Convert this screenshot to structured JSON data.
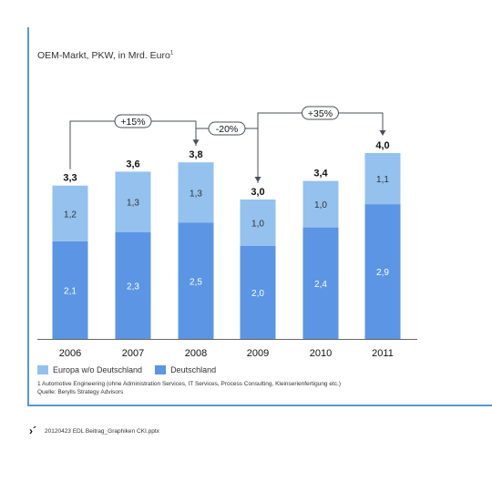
{
  "title_main": "OEM-Markt, PKW, in Mrd. Euro",
  "title_sup": "1",
  "chart_data": {
    "type": "bar",
    "stacked": true,
    "categories": [
      "2006",
      "2007",
      "2008",
      "2009",
      "2010",
      "2011"
    ],
    "series": [
      {
        "name": "Deutschland",
        "values": [
          2.1,
          2.3,
          2.5,
          2.0,
          2.4,
          2.9
        ],
        "labels": [
          "2,1",
          "2,3",
          "2,5",
          "2,0",
          "2,4",
          "2,9"
        ],
        "color": "#5b95e3"
      },
      {
        "name": "Europa w/o Deutschland",
        "values": [
          1.2,
          1.3,
          1.3,
          1.0,
          1.0,
          1.1
        ],
        "labels": [
          "1,2",
          "1,3",
          "1,3",
          "1,0",
          "1,0",
          "1,1"
        ],
        "color": "#94c1ee"
      }
    ],
    "totals": [
      3.3,
      3.6,
      3.8,
      3.0,
      3.4,
      4.0
    ],
    "total_labels": [
      "3,3",
      "3,6",
      "3,8",
      "3,0",
      "3,4",
      "4,0"
    ],
    "annotations": [
      {
        "from": "2006",
        "to": "2008",
        "text": "+15%"
      },
      {
        "from": "2008",
        "to": "2009",
        "text": "-20%"
      },
      {
        "from": "2009",
        "to": "2011",
        "text": "+35%"
      }
    ],
    "ylim": [
      0,
      4.0
    ],
    "grid": false,
    "legend_position": "bottom-left"
  },
  "legend_order": [
    "Europa w/o Deutschland",
    "Deutschland"
  ],
  "footnote_line1": "1  Automotive Engineering (ohne Administration Services, IT Services, Process Consulting, Kleinserienfertigung  etc.)",
  "footnote_line2": "Quelle: Berylls Strategy Advisors",
  "footer_mark": "›´",
  "footer_text": "20120423 EDL Beitrag_Graphiken CKI.pptx"
}
